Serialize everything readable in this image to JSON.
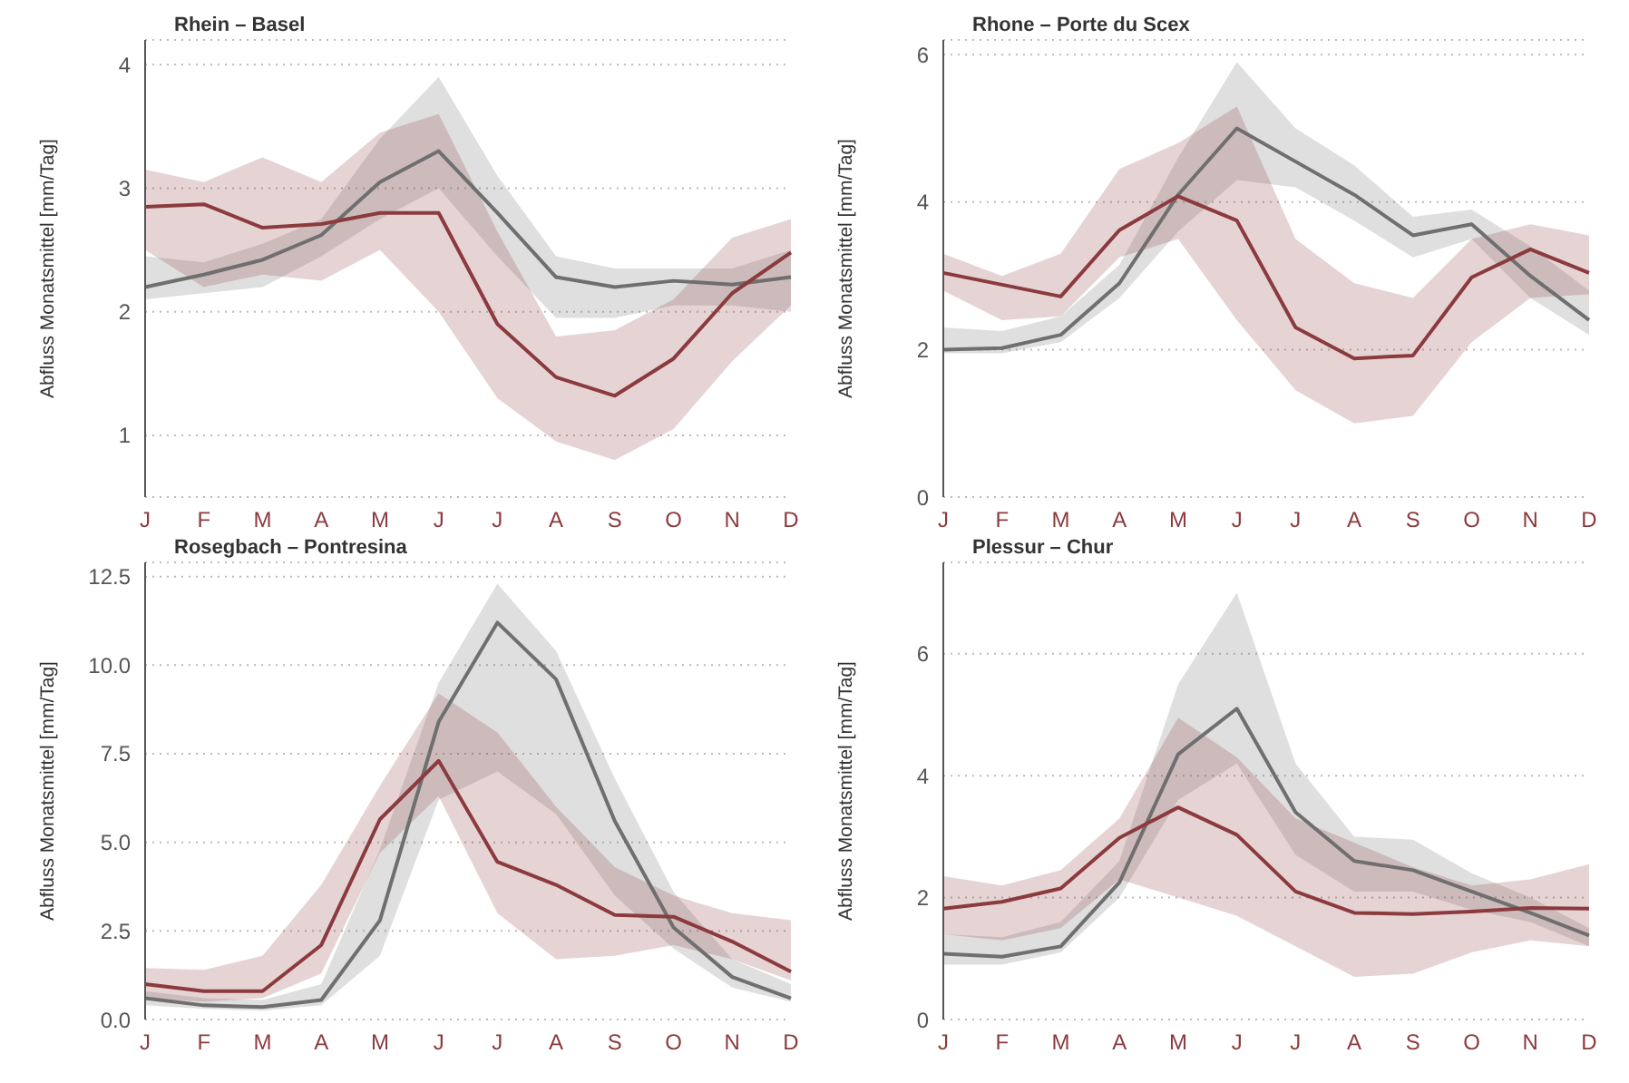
{
  "chart_data": [
    {
      "type": "line",
      "title": "Rhein – Basel",
      "ylabel": "Abfluss Monatsmittel [mm/Tag]",
      "categories": [
        "J",
        "F",
        "M",
        "A",
        "M",
        "J",
        "J",
        "A",
        "S",
        "O",
        "N",
        "D"
      ],
      "ylim": [
        0.5,
        4.2
      ],
      "yticks": [
        1,
        2,
        3,
        4
      ],
      "grid": "y",
      "legend": false,
      "series": [
        {
          "color": "#6f6f6f",
          "values": [
            2.2,
            2.3,
            2.42,
            2.62,
            3.05,
            3.3,
            2.8,
            2.28,
            2.2,
            2.25,
            2.22,
            2.28
          ],
          "lower": [
            2.1,
            2.15,
            2.2,
            2.45,
            2.75,
            3.0,
            2.45,
            1.95,
            1.95,
            2.05,
            2.05,
            2.0
          ],
          "upper": [
            2.45,
            2.4,
            2.55,
            2.75,
            3.4,
            3.9,
            3.1,
            2.45,
            2.35,
            2.35,
            2.35,
            2.5
          ]
        },
        {
          "color": "#8b3a3e",
          "values": [
            2.85,
            2.87,
            2.68,
            2.71,
            2.8,
            2.8,
            1.9,
            1.47,
            1.32,
            1.62,
            2.15,
            2.48
          ],
          "lower": [
            2.5,
            2.2,
            2.3,
            2.25,
            2.5,
            2.0,
            1.3,
            0.95,
            0.8,
            1.05,
            1.6,
            2.05
          ],
          "upper": [
            3.15,
            3.05,
            3.25,
            3.05,
            3.45,
            3.6,
            2.65,
            1.8,
            1.85,
            2.1,
            2.6,
            2.75
          ]
        }
      ]
    },
    {
      "type": "line",
      "title": "Rhone – Porte du Scex",
      "ylabel": "Abfluss Monatsmittel [mm/Tag]",
      "categories": [
        "J",
        "F",
        "M",
        "A",
        "M",
        "J",
        "J",
        "A",
        "S",
        "O",
        "N",
        "D"
      ],
      "ylim": [
        0,
        6.2
      ],
      "yticks": [
        0,
        2,
        4,
        6
      ],
      "grid": "y",
      "legend": false,
      "series": [
        {
          "color": "#6f6f6f",
          "values": [
            2.0,
            2.02,
            2.2,
            2.9,
            4.1,
            5.0,
            4.55,
            4.1,
            3.55,
            3.7,
            3.0,
            2.4
          ],
          "lower": [
            1.95,
            1.95,
            2.1,
            2.7,
            3.6,
            4.3,
            4.2,
            3.75,
            3.25,
            3.5,
            2.7,
            2.2
          ],
          "upper": [
            2.3,
            2.25,
            2.45,
            3.15,
            4.6,
            5.9,
            5.0,
            4.5,
            3.8,
            3.9,
            3.4,
            2.8
          ]
        },
        {
          "color": "#8b3a3e",
          "values": [
            3.04,
            2.88,
            2.72,
            3.62,
            4.08,
            3.75,
            2.3,
            1.88,
            1.92,
            2.98,
            3.36,
            3.04
          ],
          "lower": [
            2.8,
            2.4,
            2.45,
            3.25,
            3.5,
            2.4,
            1.45,
            1.0,
            1.1,
            2.1,
            2.7,
            2.75
          ],
          "upper": [
            3.3,
            3.0,
            3.3,
            4.45,
            4.8,
            5.3,
            3.5,
            2.9,
            2.7,
            3.5,
            3.7,
            3.55
          ]
        }
      ]
    },
    {
      "type": "line",
      "title": "Rosegbach – Pontresina",
      "ylabel": "Abfluss Monatsmittel [mm/Tag]",
      "categories": [
        "J",
        "F",
        "M",
        "A",
        "M",
        "J",
        "J",
        "A",
        "S",
        "O",
        "N",
        "D"
      ],
      "ylim": [
        0,
        12.9
      ],
      "yticks": [
        {
          "value": 0,
          "label": "0.0"
        },
        {
          "value": 2.5,
          "label": "2.5"
        },
        {
          "value": 5,
          "label": "5.0"
        },
        {
          "value": 7.5,
          "label": "7.5"
        },
        {
          "value": 10,
          "label": "10.0"
        },
        {
          "value": 12.5,
          "label": "12.5"
        }
      ],
      "grid": "y",
      "legend": false,
      "series": [
        {
          "color": "#6f6f6f",
          "values": [
            0.6,
            0.4,
            0.35,
            0.55,
            2.8,
            8.4,
            11.2,
            9.6,
            5.6,
            2.6,
            1.2,
            0.6
          ],
          "lower": [
            0.4,
            0.3,
            0.25,
            0.4,
            1.8,
            6.2,
            7.0,
            5.8,
            3.5,
            2.0,
            0.9,
            0.5
          ],
          "upper": [
            0.8,
            0.6,
            0.55,
            1.0,
            4.8,
            9.5,
            12.3,
            10.4,
            6.8,
            3.6,
            1.7,
            1.0
          ]
        },
        {
          "color": "#8b3a3e",
          "values": [
            1.0,
            0.8,
            0.8,
            2.1,
            5.65,
            7.3,
            4.45,
            3.8,
            2.95,
            2.9,
            2.2,
            1.35
          ],
          "lower": [
            0.6,
            0.5,
            0.6,
            1.3,
            4.7,
            6.3,
            3.0,
            1.7,
            1.8,
            2.1,
            1.7,
            1.1
          ],
          "upper": [
            1.45,
            1.4,
            1.8,
            3.8,
            6.6,
            9.2,
            8.1,
            6.0,
            4.3,
            3.5,
            3.0,
            2.8
          ]
        }
      ]
    },
    {
      "type": "line",
      "title": "Plessur – Chur",
      "ylabel": "Abfluss Monatsmittel [mm/Tag]",
      "categories": [
        "J",
        "F",
        "M",
        "A",
        "M",
        "J",
        "J",
        "A",
        "S",
        "O",
        "N",
        "D"
      ],
      "ylim": [
        0,
        7.5
      ],
      "yticks": [
        0,
        2,
        4,
        6
      ],
      "grid": "y",
      "legend": false,
      "series": [
        {
          "color": "#6f6f6f",
          "values": [
            1.08,
            1.03,
            1.2,
            2.25,
            4.35,
            5.1,
            3.4,
            2.6,
            2.45,
            2.1,
            1.75,
            1.38
          ],
          "lower": [
            0.9,
            0.9,
            1.1,
            2.0,
            3.6,
            4.2,
            2.7,
            2.1,
            2.1,
            1.8,
            1.6,
            1.2
          ],
          "upper": [
            1.4,
            1.35,
            1.6,
            2.6,
            5.5,
            7.0,
            4.2,
            3.0,
            2.95,
            2.4,
            2.0,
            1.5
          ]
        },
        {
          "color": "#8b3a3e",
          "values": [
            1.82,
            1.93,
            2.15,
            2.98,
            3.48,
            3.03,
            2.1,
            1.75,
            1.73,
            1.77,
            1.83,
            1.82
          ],
          "lower": [
            1.4,
            1.3,
            1.5,
            2.3,
            2.0,
            1.7,
            1.2,
            0.7,
            0.75,
            1.1,
            1.3,
            1.2
          ],
          "upper": [
            2.35,
            2.2,
            2.45,
            3.3,
            4.95,
            4.3,
            3.3,
            2.9,
            2.5,
            2.2,
            2.3,
            2.55
          ]
        }
      ]
    }
  ]
}
